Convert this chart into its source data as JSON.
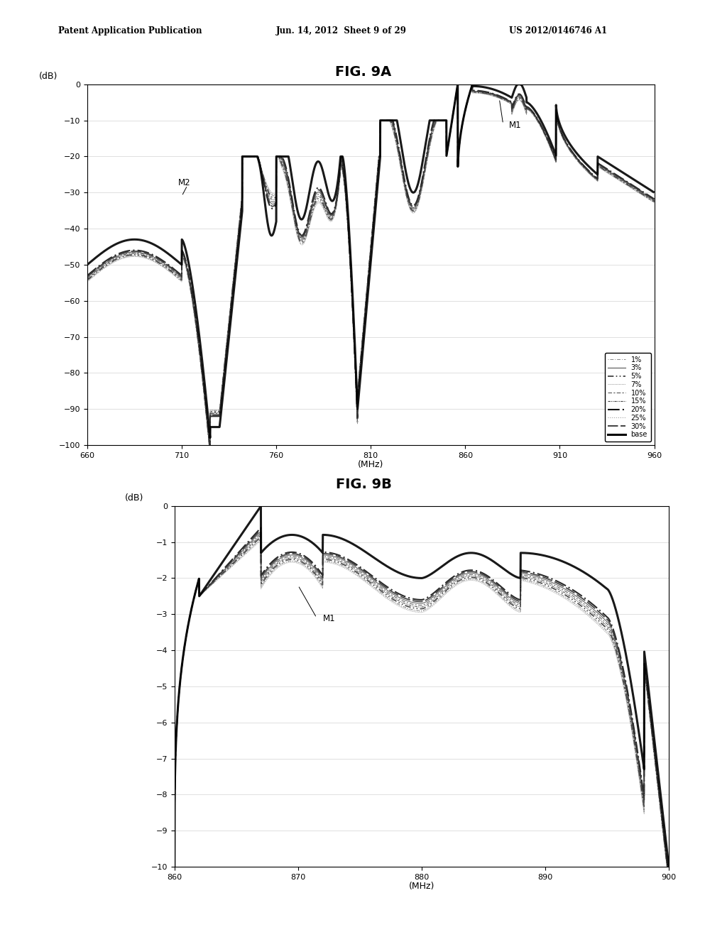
{
  "fig9a_title": "FIG. 9A",
  "fig9b_title": "FIG. 9B",
  "header_left": "Patent Application Publication",
  "header_center": "Jun. 14, 2012  Sheet 9 of 29",
  "header_right": "US 2012/0146746 A1",
  "fig9a": {
    "xlabel": "(MHz)",
    "ylabel": "(dB)",
    "xlim": [
      660,
      960
    ],
    "ylim": [
      -100,
      0
    ],
    "xticks": [
      660,
      710,
      760,
      810,
      860,
      910,
      960
    ],
    "yticks": [
      0,
      -10,
      -20,
      -30,
      -40,
      -50,
      -60,
      -70,
      -80,
      -90,
      -100
    ]
  },
  "fig9b": {
    "xlabel": "(MHz)",
    "ylabel": "(dB)",
    "xlim": [
      860,
      900
    ],
    "ylim": [
      -10,
      0
    ],
    "xticks": [
      860,
      870,
      880,
      890,
      900
    ],
    "yticks": [
      0,
      -1,
      -2,
      -3,
      -4,
      -5,
      -6,
      -7,
      -8,
      -9,
      -10
    ]
  },
  "legend_entries": [
    "1%",
    "3%",
    "5%",
    "7%",
    "10%",
    "15%",
    "20%",
    "25%",
    "30%",
    "base"
  ],
  "background_color": "#ffffff"
}
